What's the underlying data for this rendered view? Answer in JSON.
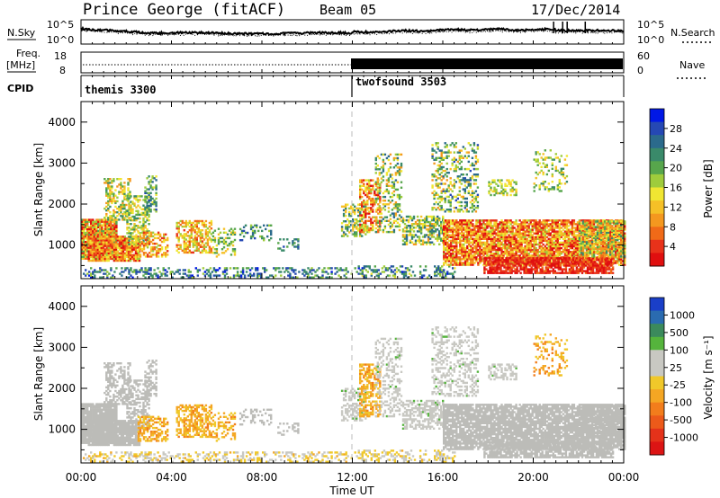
{
  "header": {
    "station": "Prince George (fitACF)",
    "beam": "Beam 05",
    "date": "17/Dec/2014"
  },
  "noise_panel": {
    "left_label": "N.Sky",
    "right_label": "N.Search",
    "ticks": [
      "10^5",
      "10^0"
    ]
  },
  "freq_panel": {
    "left_label_1": "Freq.",
    "left_label_2": "[MHz]",
    "right_label": "Nave",
    "left_ticks": [
      "18",
      "8"
    ],
    "right_ticks": [
      "60",
      "0"
    ]
  },
  "cpid_panel": {
    "label": "CPID",
    "modes": [
      {
        "name": "themis 3300",
        "start_hour": 0
      },
      {
        "name": "twofsound 3503",
        "start_hour": 12
      }
    ]
  },
  "power_panel": {
    "ylabel": "Slant Range [km]",
    "colorbar_label": "Power [dB]",
    "colorbar_ticks": [
      "28",
      "24",
      "20",
      "16",
      "12",
      "8",
      "4"
    ],
    "colors": [
      "#0018e6",
      "#2548b4",
      "#2b6a8c",
      "#3a8a6a",
      "#57a64c",
      "#9fcc3c",
      "#f0e632",
      "#f5c027",
      "#f4981f",
      "#f06a18",
      "#e8321a",
      "#e00f0f"
    ]
  },
  "velocity_panel": {
    "ylabel": "Slant Range [km]",
    "colorbar_label": "Velocity [m s⁻¹]",
    "colorbar_ticks": [
      "1000",
      "500",
      "100",
      "25",
      "-25",
      "-100",
      "-500",
      "-1000"
    ],
    "colors": [
      "#1a3fc8",
      "#2a6bb0",
      "#3b8a5c",
      "#55b43c",
      "#c8c8c2",
      "#c8c8c2",
      "#f0c82a",
      "#f4a623",
      "#f27d1c",
      "#ec5a1a",
      "#e4321a",
      "#dc1414"
    ],
    "ground_scatter_color": "#bcbcb8"
  },
  "chart_data": {
    "type": "heatmap",
    "title": "Prince George (fitACF)",
    "xlabel": "Time UT",
    "x_ticks": [
      "00:00",
      "04:00",
      "08:00",
      "12:00",
      "16:00",
      "20:00",
      "00:00"
    ],
    "xlim_hours": [
      0,
      24
    ],
    "ylabel": "Slant Range [km]",
    "y_ticks": [
      1000,
      2000,
      3000,
      4000
    ],
    "ylim_km": [
      180,
      4500
    ],
    "power_db_range": [
      0,
      30
    ],
    "velocity_ms_range": [
      -1500,
      1500
    ]
  }
}
